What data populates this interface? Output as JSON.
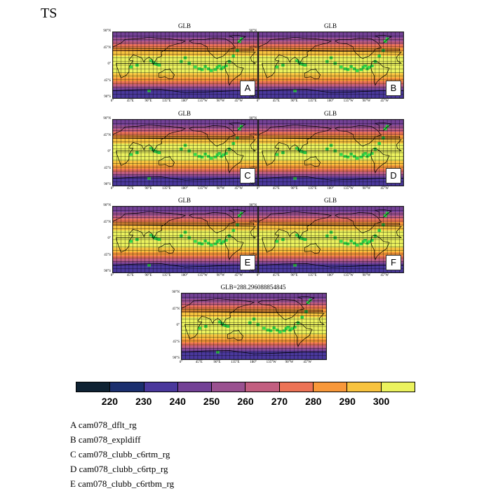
{
  "title": "TS",
  "panels": [
    {
      "title": "GLB",
      "letter": "A"
    },
    {
      "title": "GLB",
      "letter": "B"
    },
    {
      "title": "GLB",
      "letter": "C"
    },
    {
      "title": "GLB",
      "letter": "D"
    },
    {
      "title": "GLB",
      "letter": "E"
    },
    {
      "title": "GLB",
      "letter": "F"
    },
    {
      "title": "GLB=288.296088854845",
      "letter": ""
    }
  ],
  "lat_labels": [
    "90°N",
    "45°N",
    "0°",
    "45°S",
    "90°S"
  ],
  "lon_labels": [
    "0°",
    "45°E",
    "90°E",
    "135°E",
    "180°",
    "135°W",
    "90°W",
    "45°W"
  ],
  "colorbar": {
    "colors": [
      "#0f2233",
      "#1b2f6e",
      "#4a389c",
      "#734196",
      "#9a5190",
      "#c25e80",
      "#ec7356",
      "#f8983a",
      "#f8c33f",
      "#ebf25e"
    ],
    "labels": [
      "220",
      "230",
      "240",
      "250",
      "260",
      "270",
      "280",
      "290",
      "300"
    ]
  },
  "colors": {
    "polar": "#2d3478",
    "highlight": "#33e04a",
    "coast": "#000000",
    "grid": "#000000"
  },
  "legend": [
    "A  cam078_dflt_rg",
    "B  cam078_expldiff",
    "C  cam078_clubb_c6rtm_rg",
    "D  cam078_clubb_c6rtp_rg",
    "E  cam078_clubb_c6rtbm_rg"
  ]
}
